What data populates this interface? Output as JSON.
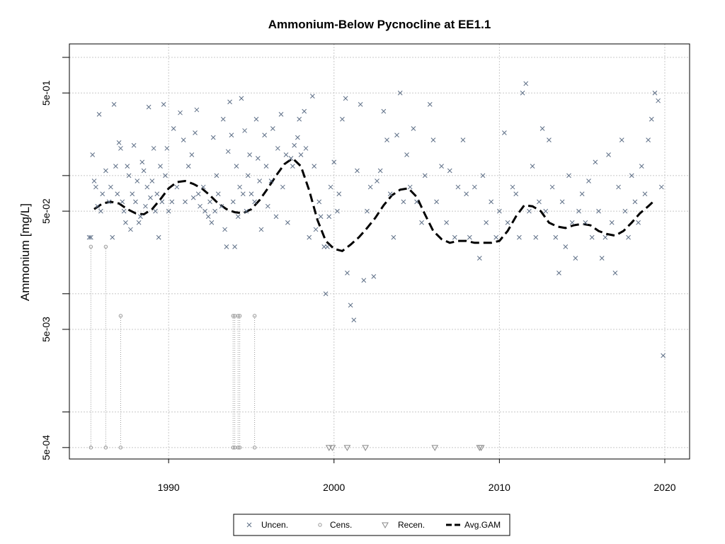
{
  "chart_data": {
    "type": "scatter",
    "title": "Ammonium-Below Pycnocline at EE1.1",
    "xlabel": "",
    "ylabel": "Ammonium [mg/L]",
    "ylog": true,
    "ylim": [
      0.0004,
      1.3
    ],
    "xlim": [
      1984,
      2021.5
    ],
    "x_ticks": [
      1990,
      2000,
      2010,
      2020
    ],
    "y_ticks": [
      {
        "value": 0.0005,
        "label": "5e-04"
      },
      {
        "value": 0.001,
        "label": ""
      },
      {
        "value": 0.005,
        "label": "5e-03"
      },
      {
        "value": 0.01,
        "label": ""
      },
      {
        "value": 0.05,
        "label": "5e-02"
      },
      {
        "value": 0.1,
        "label": ""
      },
      {
        "value": 0.5,
        "label": "5e-01"
      },
      {
        "value": 1.0,
        "label": ""
      }
    ],
    "grid": true,
    "legend_position": "bottom",
    "legend": [
      {
        "label": "Uncen.",
        "marker": "x"
      },
      {
        "label": "Cens.",
        "marker": "o"
      },
      {
        "label": "Recen.",
        "marker": "triangle-down"
      },
      {
        "label": "Avg.GAM",
        "marker": "dashed-line"
      }
    ],
    "colors": {
      "points": "#5d6e86",
      "censored": "#999999",
      "gam": "#000000",
      "grid": "#c8c8c8"
    },
    "uncensored": [
      [
        1985.2,
        0.03
      ],
      [
        1985.3,
        0.03
      ],
      [
        1985.4,
        0.15
      ],
      [
        1985.5,
        0.09
      ],
      [
        1985.6,
        0.08
      ],
      [
        1985.7,
        0.055
      ],
      [
        1985.8,
        0.33
      ],
      [
        1985.9,
        0.05
      ],
      [
        1986.0,
        0.07
      ],
      [
        1986.2,
        0.11
      ],
      [
        1986.4,
        0.06
      ],
      [
        1986.5,
        0.08
      ],
      [
        1986.6,
        0.03
      ],
      [
        1986.7,
        0.4
      ],
      [
        1986.8,
        0.12
      ],
      [
        1986.9,
        0.07
      ],
      [
        1987.0,
        0.19
      ],
      [
        1987.1,
        0.17
      ],
      [
        1987.2,
        0.06
      ],
      [
        1987.3,
        0.05
      ],
      [
        1987.4,
        0.04
      ],
      [
        1987.5,
        0.12
      ],
      [
        1987.6,
        0.1
      ],
      [
        1987.7,
        0.035
      ],
      [
        1987.8,
        0.07
      ],
      [
        1987.9,
        0.18
      ],
      [
        1988.0,
        0.06
      ],
      [
        1988.1,
        0.09
      ],
      [
        1988.2,
        0.04
      ],
      [
        1988.3,
        0.045
      ],
      [
        1988.4,
        0.13
      ],
      [
        1988.5,
        0.11
      ],
      [
        1988.6,
        0.055
      ],
      [
        1988.7,
        0.08
      ],
      [
        1988.8,
        0.38
      ],
      [
        1988.9,
        0.065
      ],
      [
        1989.0,
        0.09
      ],
      [
        1989.1,
        0.17
      ],
      [
        1989.2,
        0.05
      ],
      [
        1989.3,
        0.07
      ],
      [
        1989.4,
        0.03
      ],
      [
        1989.5,
        0.12
      ],
      [
        1989.6,
        0.06
      ],
      [
        1989.7,
        0.4
      ],
      [
        1989.8,
        0.1
      ],
      [
        1989.9,
        0.17
      ],
      [
        1990.0,
        0.05
      ],
      [
        1990.2,
        0.06
      ],
      [
        1990.3,
        0.25
      ],
      [
        1990.5,
        0.08
      ],
      [
        1990.7,
        0.34
      ],
      [
        1990.9,
        0.2
      ],
      [
        1991.0,
        0.06
      ],
      [
        1991.2,
        0.12
      ],
      [
        1991.4,
        0.15
      ],
      [
        1991.5,
        0.065
      ],
      [
        1991.6,
        0.23
      ],
      [
        1991.7,
        0.36
      ],
      [
        1991.8,
        0.07
      ],
      [
        1991.9,
        0.055
      ],
      [
        1992.1,
        0.08
      ],
      [
        1992.2,
        0.05
      ],
      [
        1992.4,
        0.045
      ],
      [
        1992.5,
        0.06
      ],
      [
        1992.6,
        0.04
      ],
      [
        1992.7,
        0.21
      ],
      [
        1992.8,
        0.05
      ],
      [
        1992.9,
        0.1
      ],
      [
        1993.0,
        0.07
      ],
      [
        1993.2,
        0.055
      ],
      [
        1993.3,
        0.3
      ],
      [
        1993.4,
        0.035
      ],
      [
        1993.5,
        0.025
      ],
      [
        1993.6,
        0.16
      ],
      [
        1993.7,
        0.42
      ],
      [
        1993.8,
        0.22
      ],
      [
        1993.9,
        0.06
      ],
      [
        1994.0,
        0.025
      ],
      [
        1994.1,
        0.12
      ],
      [
        1994.2,
        0.045
      ],
      [
        1994.3,
        0.08
      ],
      [
        1994.4,
        0.45
      ],
      [
        1994.5,
        0.07
      ],
      [
        1994.6,
        0.24
      ],
      [
        1994.7,
        0.05
      ],
      [
        1994.8,
        0.1
      ],
      [
        1994.9,
        0.15
      ],
      [
        1995.0,
        0.07
      ],
      [
        1995.2,
        0.06
      ],
      [
        1995.3,
        0.3
      ],
      [
        1995.4,
        0.14
      ],
      [
        1995.5,
        0.09
      ],
      [
        1995.6,
        0.035
      ],
      [
        1995.8,
        0.22
      ],
      [
        1995.9,
        0.12
      ],
      [
        1996.0,
        0.055
      ],
      [
        1996.2,
        0.09
      ],
      [
        1996.3,
        0.25
      ],
      [
        1996.5,
        0.045
      ],
      [
        1996.6,
        0.17
      ],
      [
        1996.8,
        0.33
      ],
      [
        1996.9,
        0.08
      ],
      [
        1997.1,
        0.15
      ],
      [
        1997.2,
        0.04
      ],
      [
        1997.4,
        0.14
      ],
      [
        1997.5,
        0.12
      ],
      [
        1997.6,
        0.18
      ],
      [
        1997.8,
        0.21
      ],
      [
        1997.9,
        0.3
      ],
      [
        1998.0,
        0.15
      ],
      [
        1998.2,
        0.35
      ],
      [
        1998.3,
        0.17
      ],
      [
        1998.5,
        0.03
      ],
      [
        1998.7,
        0.47
      ],
      [
        1998.8,
        0.12
      ],
      [
        1998.9,
        0.035
      ],
      [
        1999.1,
        0.06
      ],
      [
        1999.2,
        0.045
      ],
      [
        1999.4,
        0.025
      ],
      [
        1999.5,
        0.01
      ],
      [
        1999.6,
        0.025
      ],
      [
        1999.7,
        0.045
      ],
      [
        1999.8,
        0.08
      ],
      [
        2000.0,
        0.13
      ],
      [
        2000.2,
        0.05
      ],
      [
        2000.3,
        0.07
      ],
      [
        2000.5,
        0.3
      ],
      [
        2000.7,
        0.45
      ],
      [
        2000.8,
        0.015
      ],
      [
        2001.0,
        0.008
      ],
      [
        2001.2,
        0.006
      ],
      [
        2001.4,
        0.11
      ],
      [
        2001.6,
        0.4
      ],
      [
        2001.8,
        0.013
      ],
      [
        2002.0,
        0.05
      ],
      [
        2002.2,
        0.08
      ],
      [
        2002.4,
        0.014
      ],
      [
        2002.6,
        0.09
      ],
      [
        2002.8,
        0.11
      ],
      [
        2003.0,
        0.35
      ],
      [
        2003.2,
        0.2
      ],
      [
        2003.4,
        0.07
      ],
      [
        2003.6,
        0.03
      ],
      [
        2003.8,
        0.22
      ],
      [
        2004.0,
        0.5
      ],
      [
        2004.2,
        0.06
      ],
      [
        2004.4,
        0.15
      ],
      [
        2004.6,
        0.08
      ],
      [
        2004.8,
        0.25
      ],
      [
        2005.0,
        0.06
      ],
      [
        2005.3,
        0.04
      ],
      [
        2005.5,
        0.1
      ],
      [
        2005.8,
        0.4
      ],
      [
        2006.0,
        0.2
      ],
      [
        2006.2,
        0.06
      ],
      [
        2006.5,
        0.12
      ],
      [
        2006.8,
        0.04
      ],
      [
        2007.0,
        0.11
      ],
      [
        2007.3,
        0.03
      ],
      [
        2007.5,
        0.08
      ],
      [
        2007.8,
        0.2
      ],
      [
        2008.0,
        0.07
      ],
      [
        2008.2,
        0.03
      ],
      [
        2008.5,
        0.08
      ],
      [
        2008.8,
        0.02
      ],
      [
        2009.0,
        0.1
      ],
      [
        2009.2,
        0.04
      ],
      [
        2009.5,
        0.06
      ],
      [
        2009.8,
        0.03
      ],
      [
        2010.0,
        0.05
      ],
      [
        2010.3,
        0.23
      ],
      [
        2010.5,
        0.04
      ],
      [
        2010.8,
        0.08
      ],
      [
        2011.0,
        0.07
      ],
      [
        2011.2,
        0.03
      ],
      [
        2011.4,
        0.5
      ],
      [
        2011.6,
        0.6
      ],
      [
        2011.8,
        0.05
      ],
      [
        2012.0,
        0.12
      ],
      [
        2012.2,
        0.03
      ],
      [
        2012.4,
        0.06
      ],
      [
        2012.6,
        0.25
      ],
      [
        2012.8,
        0.05
      ],
      [
        2013.0,
        0.2
      ],
      [
        2013.2,
        0.08
      ],
      [
        2013.4,
        0.03
      ],
      [
        2013.6,
        0.015
      ],
      [
        2013.8,
        0.06
      ],
      [
        2014.0,
        0.025
      ],
      [
        2014.2,
        0.1
      ],
      [
        2014.4,
        0.04
      ],
      [
        2014.6,
        0.02
      ],
      [
        2014.8,
        0.05
      ],
      [
        2015.0,
        0.07
      ],
      [
        2015.2,
        0.04
      ],
      [
        2015.4,
        0.09
      ],
      [
        2015.6,
        0.03
      ],
      [
        2015.8,
        0.13
      ],
      [
        2016.0,
        0.05
      ],
      [
        2016.2,
        0.02
      ],
      [
        2016.4,
        0.03
      ],
      [
        2016.6,
        0.15
      ],
      [
        2016.8,
        0.04
      ],
      [
        2017.0,
        0.015
      ],
      [
        2017.2,
        0.08
      ],
      [
        2017.4,
        0.2
      ],
      [
        2017.6,
        0.05
      ],
      [
        2017.8,
        0.03
      ],
      [
        2018.0,
        0.1
      ],
      [
        2018.2,
        0.06
      ],
      [
        2018.4,
        0.04
      ],
      [
        2018.6,
        0.12
      ],
      [
        2018.8,
        0.07
      ],
      [
        2019.0,
        0.2
      ],
      [
        2019.2,
        0.3
      ],
      [
        2019.4,
        0.5
      ],
      [
        2019.6,
        0.43
      ],
      [
        2019.8,
        0.08
      ],
      [
        2019.9,
        0.003
      ]
    ],
    "censored": [
      [
        1985.3,
        0.0005
      ],
      [
        1986.2,
        0.0005
      ],
      [
        1987.1,
        0.0005
      ],
      [
        1993.9,
        0.0005
      ],
      [
        1994.0,
        0.0005
      ],
      [
        1994.2,
        0.0005
      ],
      [
        1994.3,
        0.0005
      ],
      [
        1995.2,
        0.0005
      ]
    ],
    "recensored": [
      [
        1999.7,
        0.0005
      ],
      [
        1999.9,
        0.0005
      ],
      [
        2000.8,
        0.0005
      ],
      [
        2001.9,
        0.0005
      ],
      [
        2006.1,
        0.0005
      ],
      [
        2008.8,
        0.0005
      ],
      [
        2008.9,
        0.0005
      ]
    ],
    "gam": [
      [
        1985.5,
        0.052
      ],
      [
        1986.0,
        0.058
      ],
      [
        1986.5,
        0.06
      ],
      [
        1987.0,
        0.058
      ],
      [
        1987.5,
        0.052
      ],
      [
        1988.0,
        0.048
      ],
      [
        1988.5,
        0.047
      ],
      [
        1989.0,
        0.052
      ],
      [
        1989.5,
        0.063
      ],
      [
        1990.0,
        0.078
      ],
      [
        1990.5,
        0.088
      ],
      [
        1991.0,
        0.09
      ],
      [
        1991.5,
        0.085
      ],
      [
        1992.0,
        0.078
      ],
      [
        1992.5,
        0.068
      ],
      [
        1993.0,
        0.058
      ],
      [
        1993.5,
        0.052
      ],
      [
        1994.0,
        0.049
      ],
      [
        1994.5,
        0.048
      ],
      [
        1995.0,
        0.052
      ],
      [
        1995.5,
        0.062
      ],
      [
        1996.0,
        0.078
      ],
      [
        1996.5,
        0.1
      ],
      [
        1997.0,
        0.125
      ],
      [
        1997.5,
        0.14
      ],
      [
        1998.0,
        0.12
      ],
      [
        1998.5,
        0.075
      ],
      [
        1999.0,
        0.042
      ],
      [
        1999.5,
        0.028
      ],
      [
        2000.0,
        0.024
      ],
      [
        2000.5,
        0.023
      ],
      [
        2001.0,
        0.026
      ],
      [
        2001.5,
        0.03
      ],
      [
        2002.0,
        0.036
      ],
      [
        2002.5,
        0.044
      ],
      [
        2003.0,
        0.056
      ],
      [
        2003.5,
        0.068
      ],
      [
        2004.0,
        0.076
      ],
      [
        2004.5,
        0.078
      ],
      [
        2005.0,
        0.066
      ],
      [
        2005.5,
        0.047
      ],
      [
        2006.0,
        0.034
      ],
      [
        2006.5,
        0.029
      ],
      [
        2007.0,
        0.027
      ],
      [
        2007.5,
        0.028
      ],
      [
        2008.0,
        0.028
      ],
      [
        2008.5,
        0.027
      ],
      [
        2009.0,
        0.027
      ],
      [
        2009.5,
        0.027
      ],
      [
        2010.0,
        0.028
      ],
      [
        2010.5,
        0.034
      ],
      [
        2011.0,
        0.045
      ],
      [
        2011.5,
        0.056
      ],
      [
        2012.0,
        0.055
      ],
      [
        2012.5,
        0.05
      ],
      [
        2013.0,
        0.04
      ],
      [
        2013.5,
        0.037
      ],
      [
        2014.0,
        0.036
      ],
      [
        2014.5,
        0.038
      ],
      [
        2015.0,
        0.039
      ],
      [
        2015.5,
        0.038
      ],
      [
        2016.0,
        0.034
      ],
      [
        2016.5,
        0.032
      ],
      [
        2017.0,
        0.031
      ],
      [
        2017.5,
        0.034
      ],
      [
        2018.0,
        0.04
      ],
      [
        2018.5,
        0.048
      ],
      [
        2019.0,
        0.055
      ],
      [
        2019.4,
        0.062
      ]
    ]
  }
}
